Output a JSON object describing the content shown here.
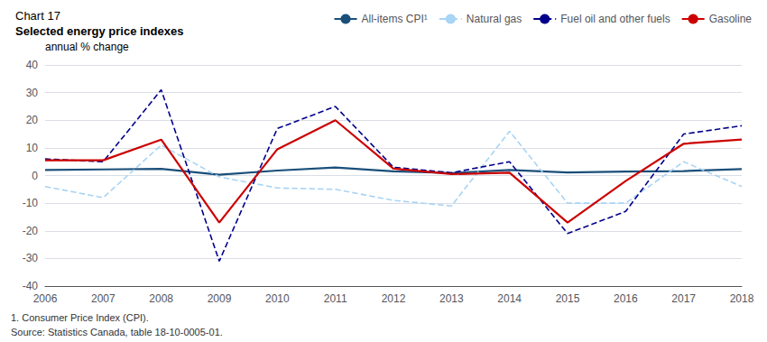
{
  "chart_data": {
    "type": "line",
    "title": "Chart 17",
    "subtitle": "Selected energy price indexes",
    "ylabel": "annual % change",
    "x": [
      2006,
      2007,
      2008,
      2009,
      2010,
      2011,
      2012,
      2013,
      2014,
      2015,
      2016,
      2017,
      2018
    ],
    "series": [
      {
        "name": "All-items CPI¹",
        "color": "#1a4f7a",
        "line_style": "solid",
        "values": [
          2.0,
          2.2,
          2.4,
          0.3,
          1.8,
          2.9,
          1.5,
          0.9,
          2.0,
          1.1,
          1.4,
          1.6,
          2.3
        ]
      },
      {
        "name": "Natural gas",
        "color": "#a8d4f5",
        "line_style": "dashed",
        "values": [
          -4.0,
          -8.0,
          11.0,
          -0.5,
          -4.5,
          -5.0,
          -9.0,
          -11.0,
          16.0,
          -10.0,
          -10.0,
          5.0,
          -4.0
        ]
      },
      {
        "name": "Fuel oil and other fuels",
        "color": "#00008B",
        "line_style": "dashed",
        "values": [
          6.0,
          5.0,
          31.0,
          -31.0,
          17.0,
          25.0,
          3.0,
          1.0,
          5.0,
          -21.0,
          -13.0,
          15.0,
          18.0
        ]
      },
      {
        "name": "Gasoline",
        "color": "#cc0000",
        "line_style": "solid",
        "values": [
          5.5,
          5.5,
          13.0,
          -17.0,
          9.5,
          20.0,
          2.5,
          0.5,
          1.0,
          -17.0,
          -2.0,
          11.5,
          13.0
        ]
      }
    ],
    "xlim": [
      2006,
      2018
    ],
    "xticks": [
      2006,
      2007,
      2008,
      2009,
      2010,
      2011,
      2012,
      2013,
      2014,
      2015,
      2016,
      2017,
      2018
    ],
    "ylim": [
      -40,
      40
    ],
    "yticks": [
      -40,
      -30,
      -20,
      -10,
      0,
      10,
      20,
      30,
      40
    ],
    "grid": true,
    "legend": "upper right",
    "annotations": [
      "1. Consumer Price Index (CPI).",
      "Source: Statistics Canada, table 18-10-0005-01."
    ]
  }
}
